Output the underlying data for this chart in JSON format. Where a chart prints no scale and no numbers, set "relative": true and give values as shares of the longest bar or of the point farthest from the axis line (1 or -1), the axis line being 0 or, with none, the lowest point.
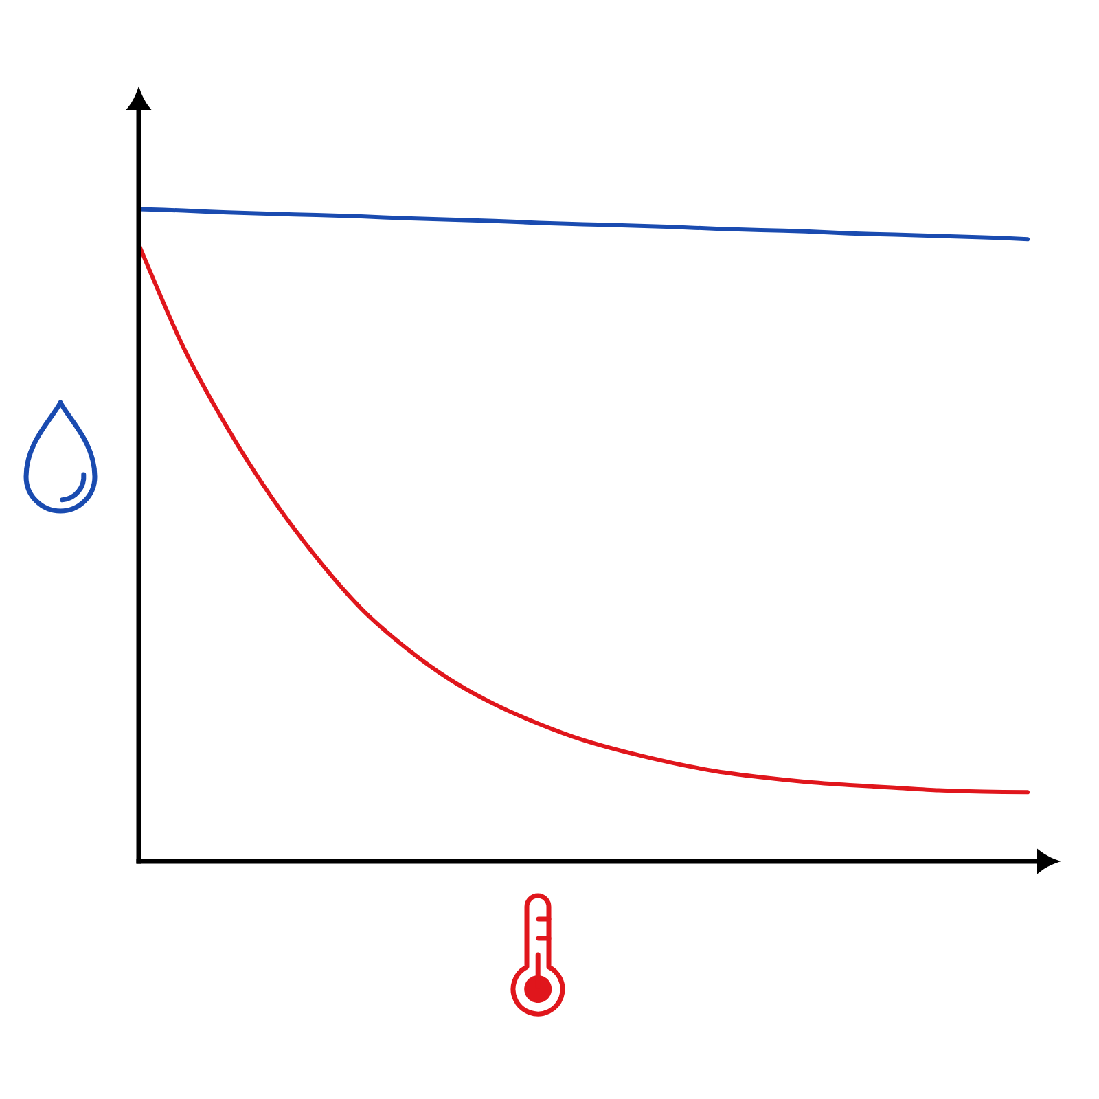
{
  "chart_data": {
    "type": "line",
    "relative": true,
    "categories": [
      null,
      null,
      null,
      null,
      null,
      null,
      null,
      null,
      null,
      null,
      null,
      null,
      null,
      null,
      null,
      null,
      null,
      null,
      null,
      null,
      null
    ],
    "series": [
      {
        "color": "#1a4bb0",
        "values": [
          1.0,
          0.998,
          0.995,
          0.993,
          0.991,
          0.989,
          0.986,
          0.984,
          0.982,
          0.979,
          0.977,
          0.975,
          0.973,
          0.97,
          0.968,
          0.966,
          0.963,
          0.961,
          0.959,
          0.957,
          0.954
        ]
      },
      {
        "color": "#e0161c",
        "values": [
          0.946,
          0.789,
          0.664,
          0.557,
          0.466,
          0.388,
          0.328,
          0.279,
          0.241,
          0.211,
          0.186,
          0.167,
          0.151,
          0.138,
          0.129,
          0.122,
          0.117,
          0.113,
          0.109,
          0.107,
          0.106
        ]
      }
    ]
  }
}
